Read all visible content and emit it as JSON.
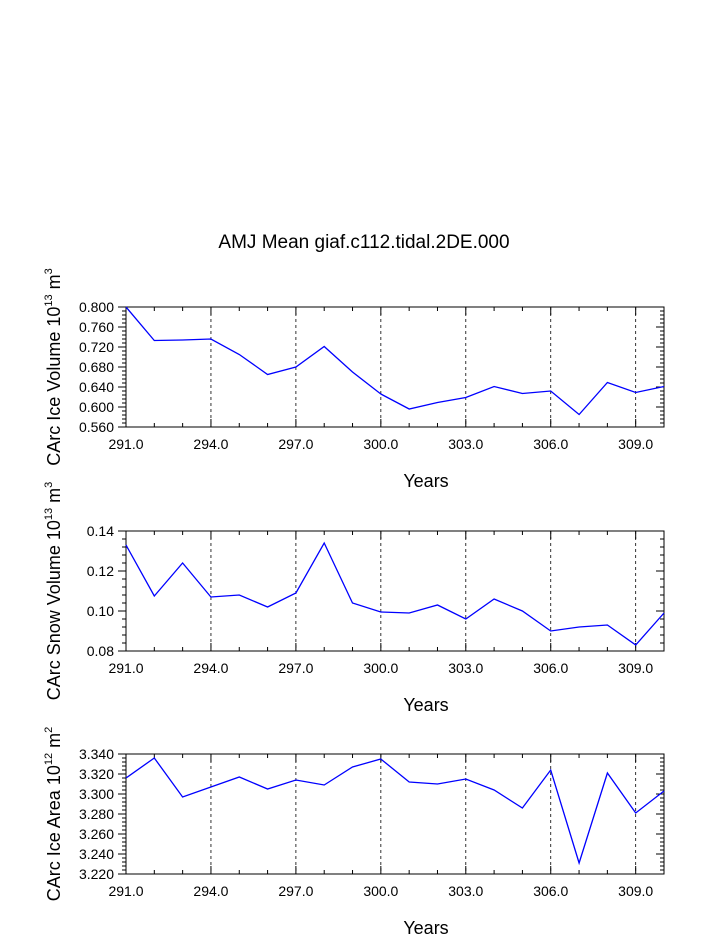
{
  "title": "AMJ Mean giaf.c112.tidal.2DE.000",
  "chart_data": [
    {
      "type": "line",
      "ylabel": {
        "base": "CArc Ice Volume 10",
        "exp": "13",
        "unit": " m",
        "unit_exp": "3"
      },
      "xlabel": "Years",
      "xlim": [
        291,
        310
      ],
      "ylim": [
        0.56,
        0.8
      ],
      "xticks": [
        291,
        294,
        297,
        300,
        303,
        306,
        309
      ],
      "xtick_labels": [
        "291.0",
        "294.0",
        "297.0",
        "300.0",
        "303.0",
        "306.0",
        "309.0"
      ],
      "yticks": [
        0.56,
        0.6,
        0.64,
        0.68,
        0.72,
        0.76,
        0.8
      ],
      "ytick_labels": [
        "0.560",
        "0.600",
        "0.640",
        "0.680",
        "0.720",
        "0.760",
        "0.800"
      ],
      "grid": "vertical dashed at x ticks",
      "line_color": "#0000ff",
      "x": [
        291,
        292,
        293,
        294,
        295,
        296,
        297,
        298,
        299,
        300,
        301,
        302,
        303,
        304,
        305,
        306,
        307,
        308,
        309,
        310
      ],
      "y": [
        0.8,
        0.733,
        0.734,
        0.736,
        0.705,
        0.665,
        0.68,
        0.721,
        0.67,
        0.626,
        0.596,
        0.609,
        0.619,
        0.641,
        0.627,
        0.632,
        0.585,
        0.649,
        0.629,
        0.641
      ]
    },
    {
      "type": "line",
      "ylabel": {
        "base": "CArc Snow Volume 10",
        "exp": "13",
        "unit": " m",
        "unit_exp": "3"
      },
      "xlabel": "Years",
      "xlim": [
        291,
        310
      ],
      "ylim": [
        0.08,
        0.14
      ],
      "xticks": [
        291,
        294,
        297,
        300,
        303,
        306,
        309
      ],
      "xtick_labels": [
        "291.0",
        "294.0",
        "297.0",
        "300.0",
        "303.0",
        "306.0",
        "309.0"
      ],
      "yticks": [
        0.08,
        0.1,
        0.12,
        0.14
      ],
      "ytick_labels": [
        "0.08",
        "0.10",
        "0.12",
        "0.14"
      ],
      "grid": "vertical dashed at x ticks",
      "line_color": "#0000ff",
      "x": [
        291,
        292,
        293,
        294,
        295,
        296,
        297,
        298,
        299,
        300,
        301,
        302,
        303,
        304,
        305,
        306,
        307,
        308,
        309,
        310
      ],
      "y": [
        0.133,
        0.1075,
        0.124,
        0.107,
        0.108,
        0.102,
        0.109,
        0.134,
        0.104,
        0.0995,
        0.099,
        0.103,
        0.096,
        0.106,
        0.1,
        0.09,
        0.092,
        0.093,
        0.083,
        0.099
      ]
    },
    {
      "type": "line",
      "ylabel": {
        "base": "CArc Ice Area 10",
        "exp": "12",
        "unit": " m",
        "unit_exp": "2"
      },
      "xlabel": "Years",
      "xlim": [
        291,
        310
      ],
      "ylim": [
        3.22,
        3.34
      ],
      "xticks": [
        291,
        294,
        297,
        300,
        303,
        306,
        309
      ],
      "xtick_labels": [
        "291.0",
        "294.0",
        "297.0",
        "300.0",
        "303.0",
        "306.0",
        "309.0"
      ],
      "yticks": [
        3.22,
        3.24,
        3.26,
        3.28,
        3.3,
        3.32,
        3.34
      ],
      "ytick_labels": [
        "3.220",
        "3.240",
        "3.260",
        "3.280",
        "3.300",
        "3.320",
        "3.340"
      ],
      "grid": "vertical dashed at x ticks",
      "line_color": "#0000ff",
      "x": [
        291,
        292,
        293,
        294,
        295,
        296,
        297,
        298,
        299,
        300,
        301,
        302,
        303,
        304,
        305,
        306,
        307,
        308,
        309,
        310
      ],
      "y": [
        3.316,
        3.336,
        3.297,
        3.307,
        3.317,
        3.305,
        3.314,
        3.309,
        3.327,
        3.335,
        3.312,
        3.31,
        3.315,
        3.304,
        3.286,
        3.324,
        3.231,
        3.321,
        3.281,
        3.303
      ]
    }
  ]
}
